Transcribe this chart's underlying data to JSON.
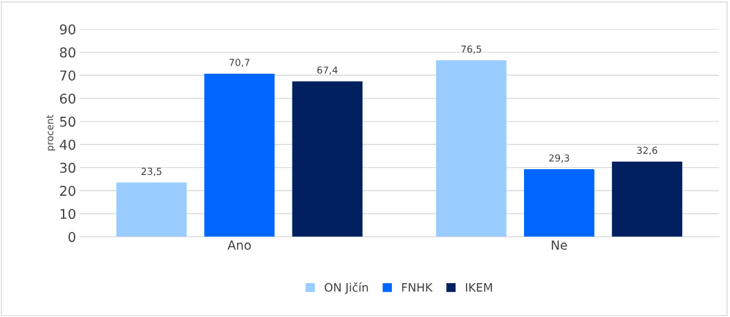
{
  "chart_data": {
    "type": "bar",
    "ylabel": "procent",
    "categories": [
      "Ano",
      "Ne"
    ],
    "series": [
      {
        "name": "ON Jičín",
        "color": "#99ccff",
        "values": [
          23.5,
          76.5
        ],
        "value_labels": [
          "23,5",
          "76,5"
        ]
      },
      {
        "name": "FNHK",
        "color": "#0066ff",
        "values": [
          70.7,
          29.3
        ],
        "value_labels": [
          "70,7",
          "29,3"
        ]
      },
      {
        "name": "IKEM",
        "color": "#002060",
        "values": [
          67.4,
          32.6
        ],
        "value_labels": [
          "67,4",
          "32,6"
        ]
      }
    ],
    "ylim": [
      0,
      90
    ],
    "yticks": [
      0,
      10,
      20,
      30,
      40,
      50,
      60,
      70,
      80,
      90
    ],
    "grid": "y",
    "legend": "bottom"
  }
}
